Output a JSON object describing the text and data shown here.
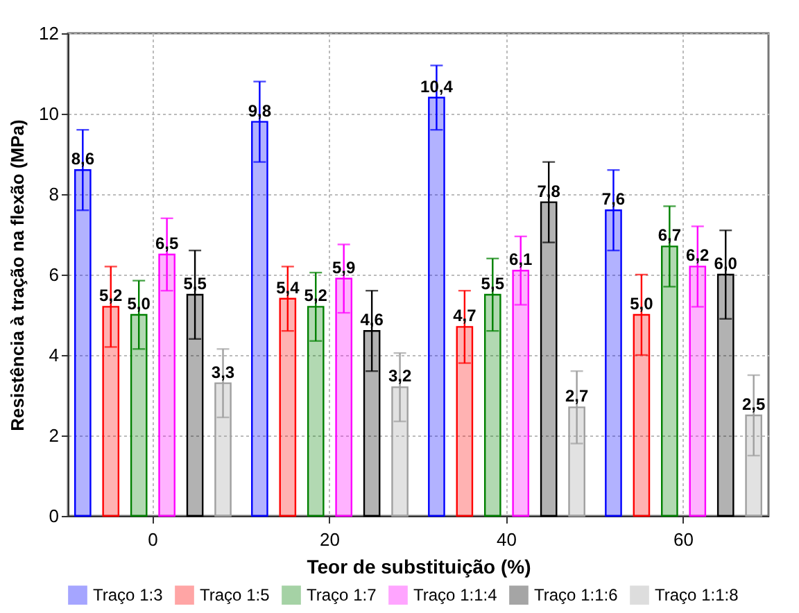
{
  "chart_data": {
    "type": "bar",
    "xlabel": "Teor de substituição (%)",
    "ylabel": "Resistência à tração na flexão (MPa)",
    "categories": [
      "0",
      "20",
      "40",
      "60"
    ],
    "ylim": [
      0,
      12
    ],
    "yticks": [
      0,
      2,
      4,
      6,
      8,
      10,
      12
    ],
    "grid": true,
    "legend": "bottom",
    "series": [
      {
        "name": "Traço 1:3",
        "color": "#0000ff",
        "values": [
          8.6,
          9.8,
          10.4,
          7.6
        ],
        "errors": [
          1.0,
          1.0,
          0.8,
          1.0
        ],
        "value_labels": [
          "8,6",
          "9,8",
          "10,4",
          "7,6"
        ]
      },
      {
        "name": "Traço 1:5",
        "color": "#ff0000",
        "values": [
          5.2,
          5.4,
          4.7,
          5.0
        ],
        "errors": [
          1.0,
          0.8,
          0.9,
          1.0
        ],
        "value_labels": [
          "5,2",
          "5,4",
          "4,7",
          "5,0"
        ]
      },
      {
        "name": "Traço 1:7",
        "color": "#008000",
        "values": [
          5.0,
          5.2,
          5.5,
          6.7
        ],
        "errors": [
          0.85,
          0.85,
          0.9,
          1.0
        ],
        "value_labels": [
          "5,0",
          "5,2",
          "5,5",
          "6,7"
        ]
      },
      {
        "name": "Traço 1:1:4",
        "color": "#ff00ff",
        "values": [
          6.5,
          5.9,
          6.1,
          6.2
        ],
        "errors": [
          0.9,
          0.85,
          0.85,
          1.0
        ],
        "value_labels": [
          "6,5",
          "5,9",
          "6,1",
          "6,2"
        ]
      },
      {
        "name": "Traço 1:1:6",
        "color": "#000000",
        "values": [
          5.5,
          4.6,
          7.8,
          6.0
        ],
        "errors": [
          1.1,
          1.0,
          1.0,
          1.1
        ],
        "value_labels": [
          "5,5",
          "4,6",
          "7,8",
          "6,0"
        ]
      },
      {
        "name": "Traço 1:1:8",
        "color": "#a0a0a0",
        "values": [
          3.3,
          3.2,
          2.7,
          2.5
        ],
        "errors": [
          0.85,
          0.85,
          0.9,
          1.0
        ],
        "value_labels": [
          "3,3",
          "3,2",
          "2,7",
          "2,5"
        ]
      }
    ]
  }
}
